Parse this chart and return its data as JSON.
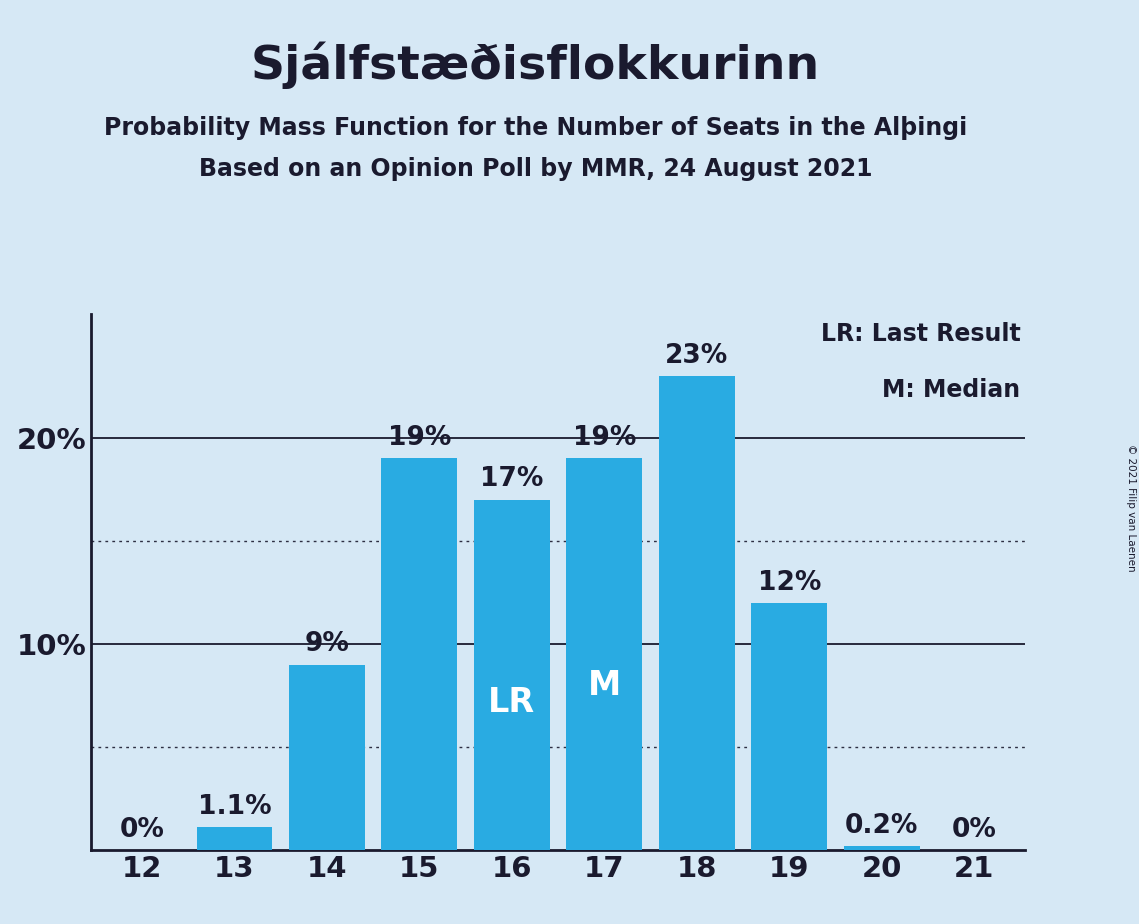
{
  "title": "Sjálfstæðisflokkurinn",
  "subtitle1": "Probability Mass Function for the Number of Seats in the Alþingi",
  "subtitle2": "Based on an Opinion Poll by MMR, 24 August 2021",
  "copyright": "© 2021 Filip van Laenen",
  "seats": [
    12,
    13,
    14,
    15,
    16,
    17,
    18,
    19,
    20,
    21
  ],
  "probabilities": [
    0.0,
    1.1,
    9.0,
    19.0,
    17.0,
    19.0,
    23.0,
    12.0,
    0.2,
    0.0
  ],
  "bar_color": "#29ABE2",
  "background_color": "#D6E8F5",
  "text_color": "#1a1a2e",
  "label_color_dark": "#1a1a2e",
  "label_color_white": "#ffffff",
  "lr_seat": 16,
  "median_seat": 17,
  "legend_lr": "LR: Last Result",
  "legend_m": "M: Median",
  "ylim": [
    0,
    26
  ],
  "dotted_lines": [
    5.0,
    15.0
  ],
  "solid_lines": [
    10.0,
    20.0
  ],
  "title_fontsize": 34,
  "subtitle_fontsize": 17,
  "axis_tick_fontsize": 21,
  "bar_label_fontsize": 19,
  "legend_fontsize": 17,
  "lr_m_fontsize": 24
}
